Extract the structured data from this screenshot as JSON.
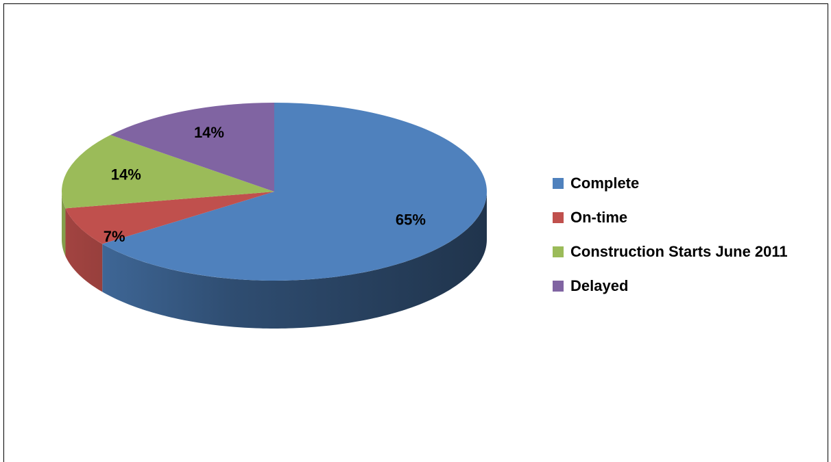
{
  "chart_data": {
    "type": "pie",
    "categories": [
      "Complete",
      "On-time",
      "Construction Starts June 2011",
      "Delayed"
    ],
    "values": [
      65,
      7,
      14,
      14
    ],
    "value_labels": [
      "65%",
      "7%",
      "14%",
      "14%"
    ],
    "colors": [
      "#4f81bd",
      "#c0504d",
      "#9bbb59",
      "#8064a2"
    ],
    "legend": "right"
  }
}
